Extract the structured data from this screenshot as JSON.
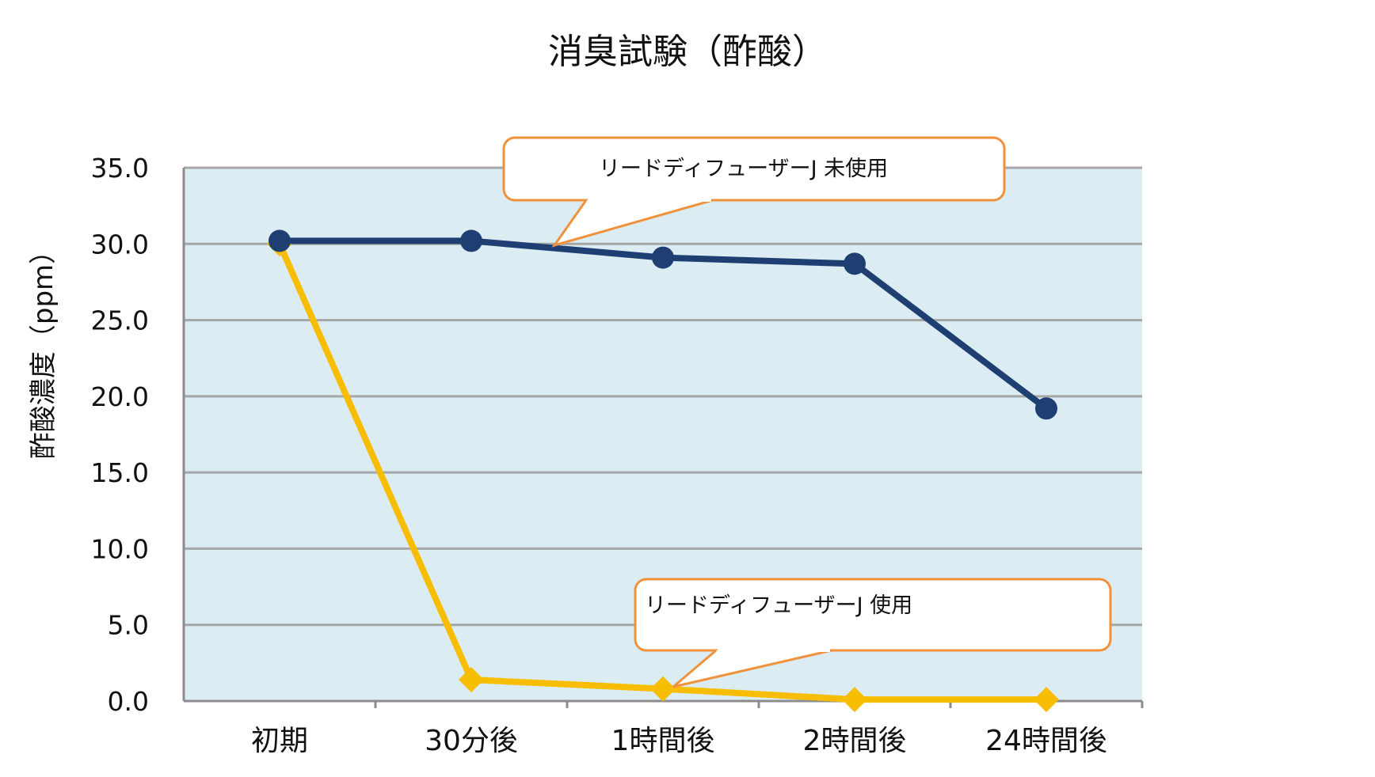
{
  "chart_data": {
    "type": "line",
    "title": "消臭試験（酢酸）",
    "xlabel": "",
    "ylabel": "酢酸濃度（ppm）",
    "categories": [
      "初期",
      "30分後",
      "1時間後",
      "2時間後",
      "24時間後"
    ],
    "ylim": [
      0,
      35
    ],
    "yticks": [
      "0.0",
      "5.0",
      "10.0",
      "15.0",
      "20.0",
      "25.0",
      "30.0",
      "35.0"
    ],
    "grid": true,
    "series": [
      {
        "name": "リードディフューザーJ 未使用",
        "marker": "circle",
        "color": "#1f3f73",
        "values": [
          30.2,
          30.2,
          29.1,
          28.7,
          19.2
        ]
      },
      {
        "name": "リードディフューザーJ 使用",
        "marker": "diamond",
        "color": "#f7bd00",
        "values": [
          30.0,
          1.4,
          0.8,
          0.1,
          0.1
        ]
      }
    ],
    "annotations": [
      {
        "series": 0,
        "text": "リードディフューザーJ 未使用",
        "border_color": "#f0923b"
      },
      {
        "series": 1,
        "text": "リードディフューザーJ 使用",
        "border_color": "#f0923b"
      }
    ],
    "plot_background": "#dbedf3",
    "gridline_color": "#a6a6a6"
  }
}
